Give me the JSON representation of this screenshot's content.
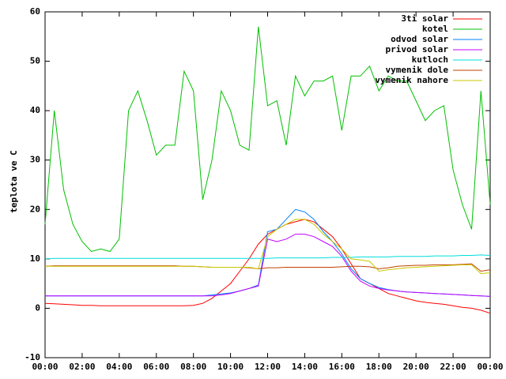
{
  "chart_data": {
    "type": "line",
    "ylabel": "teplota ve C",
    "x": [
      0,
      0.5,
      1,
      1.5,
      2,
      2.5,
      3,
      3.5,
      4,
      4.5,
      5,
      5.5,
      6,
      6.5,
      7,
      7.5,
      8,
      8.5,
      9,
      9.5,
      10,
      10.5,
      11,
      11.5,
      12,
      12.5,
      13,
      13.5,
      14,
      14.5,
      15,
      15.5,
      16,
      16.5,
      17,
      17.5,
      18,
      18.5,
      19,
      19.5,
      20,
      20.5,
      21,
      21.5,
      22,
      22.5,
      23,
      23.5,
      24
    ],
    "xlim": [
      0,
      24
    ],
    "xticks": [
      {
        "value": 0,
        "label": "00:00"
      },
      {
        "value": 2,
        "label": "02:00"
      },
      {
        "value": 4,
        "label": "04:00"
      },
      {
        "value": 6,
        "label": "06:00"
      },
      {
        "value": 8,
        "label": "08:00"
      },
      {
        "value": 10,
        "label": "10:00"
      },
      {
        "value": 12,
        "label": "12:00"
      },
      {
        "value": 14,
        "label": "14:00"
      },
      {
        "value": 16,
        "label": "16:00"
      },
      {
        "value": 18,
        "label": "18:00"
      },
      {
        "value": 20,
        "label": "20:00"
      },
      {
        "value": 22,
        "label": "22:00"
      },
      {
        "value": 24,
        "label": "00:00"
      }
    ],
    "ylim": [
      -10,
      60
    ],
    "yticks": [
      -10,
      0,
      10,
      20,
      30,
      40,
      50,
      60
    ],
    "series": [
      {
        "name": "3ti solar",
        "color": "#ff0000",
        "values": [
          1,
          0.9,
          0.8,
          0.7,
          0.6,
          0.6,
          0.5,
          0.5,
          0.5,
          0.5,
          0.5,
          0.5,
          0.5,
          0.5,
          0.5,
          0.5,
          0.6,
          1,
          2,
          3.5,
          5,
          7.5,
          10,
          13,
          15,
          16,
          17,
          17.5,
          18,
          17.5,
          16,
          14.5,
          12,
          9,
          6,
          5,
          4,
          3,
          2.5,
          2,
          1.5,
          1.2,
          1,
          0.8,
          0.5,
          0.2,
          0,
          -0.4,
          -1
        ]
      },
      {
        "name": "kotel",
        "color": "#00c000",
        "values": [
          17,
          40,
          24,
          17,
          13.5,
          11.5,
          12,
          11.5,
          14,
          40,
          44,
          38,
          31,
          33,
          33,
          48,
          44,
          22,
          30,
          44,
          40,
          33,
          32,
          57,
          41,
          42,
          33,
          47,
          43,
          46,
          46,
          47,
          36,
          47,
          47,
          49,
          44,
          47,
          46,
          46,
          42,
          38,
          40,
          41,
          28,
          21,
          16,
          44,
          21
        ]
      },
      {
        "name": "odvod solar",
        "color": "#0080ff",
        "values": [
          2.5,
          2.5,
          2.5,
          2.5,
          2.5,
          2.5,
          2.5,
          2.5,
          2.5,
          2.5,
          2.5,
          2.5,
          2.5,
          2.5,
          2.5,
          2.5,
          2.5,
          2.5,
          2.7,
          2.9,
          3.1,
          3.5,
          4,
          4.7,
          15.5,
          16,
          18,
          20,
          19.5,
          18,
          15.5,
          13.5,
          11,
          8,
          6,
          5,
          4.2,
          3.8,
          3.5,
          3.3,
          3.2,
          3.1,
          3,
          2.9,
          2.8,
          2.7,
          2.6,
          2.5,
          2.4
        ]
      },
      {
        "name": "privod solar",
        "color": "#c000ff",
        "values": [
          2.5,
          2.5,
          2.5,
          2.5,
          2.5,
          2.5,
          2.5,
          2.5,
          2.5,
          2.5,
          2.5,
          2.5,
          2.5,
          2.5,
          2.5,
          2.5,
          2.5,
          2.5,
          2.5,
          2.7,
          3,
          3.5,
          4,
          4.5,
          14,
          13.5,
          14,
          15,
          15,
          14.5,
          13.5,
          12.5,
          10.5,
          7.5,
          5.5,
          4.5,
          4,
          3.7,
          3.5,
          3.3,
          3.2,
          3.1,
          3,
          2.9,
          2.8,
          2.7,
          2.6,
          2.5,
          2.4
        ]
      },
      {
        "name": "kutloch",
        "color": "#00dddd",
        "values": [
          10,
          10.1,
          10.1,
          10.1,
          10.1,
          10.1,
          10.1,
          10.1,
          10.1,
          10.1,
          10.1,
          10.1,
          10.1,
          10.1,
          10.1,
          10.1,
          10.1,
          10.1,
          10.1,
          10.1,
          10.1,
          10.1,
          10.1,
          10.1,
          10.1,
          10.2,
          10.2,
          10.2,
          10.2,
          10.2,
          10.2,
          10.3,
          10.3,
          10.3,
          10.4,
          10.4,
          10.4,
          10.4,
          10.5,
          10.5,
          10.5,
          10.5,
          10.6,
          10.6,
          10.6,
          10.7,
          10.7,
          10.8,
          10.7
        ]
      },
      {
        "name": "vymenik dole",
        "color": "#c04000",
        "values": [
          8.5,
          8.6,
          8.6,
          8.6,
          8.6,
          8.6,
          8.6,
          8.6,
          8.6,
          8.6,
          8.6,
          8.6,
          8.6,
          8.6,
          8.6,
          8.5,
          8.5,
          8.4,
          8.3,
          8.3,
          8.3,
          8.3,
          8.2,
          8,
          8.2,
          8.2,
          8.3,
          8.3,
          8.3,
          8.3,
          8.3,
          8.3,
          8.4,
          8.5,
          8.5,
          8.4,
          8,
          8.2,
          8.5,
          8.6,
          8.7,
          8.7,
          8.8,
          8.8,
          8.8,
          8.9,
          9,
          7.5,
          7.8
        ]
      },
      {
        "name": "vymenik nahore",
        "color": "#c8c800",
        "values": [
          8.5,
          8.5,
          8.5,
          8.5,
          8.5,
          8.5,
          8.5,
          8.5,
          8.5,
          8.5,
          8.5,
          8.5,
          8.5,
          8.5,
          8.5,
          8.5,
          8.5,
          8.4,
          8.3,
          8.3,
          8.3,
          8.3,
          8.3,
          8,
          14.5,
          16,
          17,
          18,
          18,
          17,
          15,
          13.5,
          12,
          10,
          9.8,
          9.5,
          7.5,
          7.8,
          8,
          8.2,
          8.3,
          8.4,
          8.5,
          8.6,
          8.7,
          8.8,
          8.8,
          7,
          7.2
        ]
      }
    ]
  }
}
